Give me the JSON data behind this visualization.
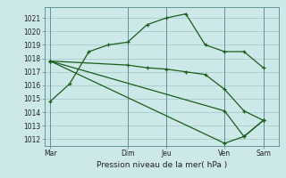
{
  "background_color": "#cce8e8",
  "grid_color": "#aacccc",
  "line_color": "#1a5e1a",
  "xtick_labels": [
    "Mar",
    "",
    "Dim",
    "Jeu",
    "",
    "Ven",
    "",
    "Sam"
  ],
  "xtick_display": [
    "Mar",
    "Dim",
    "Jeu",
    "Ven",
    "Sam"
  ],
  "xtick_display_pos": [
    0,
    4,
    6,
    9,
    11
  ],
  "ylabel_ticks": [
    1012,
    1013,
    1014,
    1015,
    1016,
    1017,
    1018,
    1019,
    1020,
    1021
  ],
  "xlabel": "Pression niveau de la mer( hPa )",
  "ylim": [
    1011.5,
    1021.8
  ],
  "xlim": [
    -0.3,
    11.8
  ],
  "series1_x": [
    0,
    1,
    2,
    3,
    4,
    5,
    6,
    7,
    8,
    9,
    10,
    11
  ],
  "series1_y": [
    1014.8,
    1016.1,
    1018.5,
    1019.0,
    1019.2,
    1020.5,
    1021.0,
    1021.3,
    1019.0,
    1018.5,
    1018.5,
    1017.3
  ],
  "series2_x": [
    0,
    4,
    5,
    6,
    7,
    8,
    9,
    10,
    11
  ],
  "series2_y": [
    1017.8,
    1017.5,
    1017.3,
    1017.2,
    1017.0,
    1016.8,
    1015.7,
    1014.1,
    1013.4
  ],
  "series3_x": [
    0,
    9,
    10,
    11
  ],
  "series3_y": [
    1017.8,
    1011.7,
    1012.2,
    1013.4
  ],
  "series4_x": [
    0,
    9,
    10,
    11
  ],
  "series4_y": [
    1017.8,
    1014.1,
    1012.2,
    1013.4
  ],
  "figwidth": 3.2,
  "figheight": 2.0,
  "dpi": 100
}
